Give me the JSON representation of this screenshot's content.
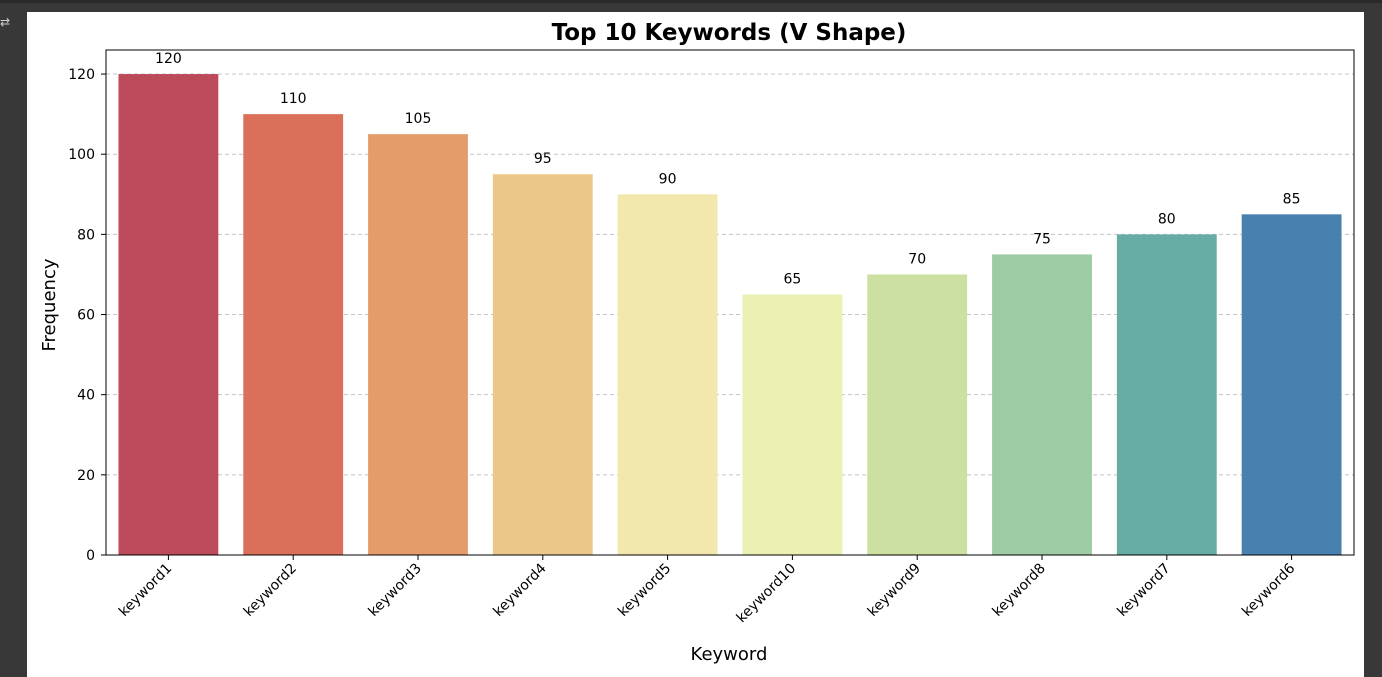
{
  "chart_data": {
    "type": "bar",
    "title": "Top 10 Keywords (V Shape)",
    "xlabel": "Keyword",
    "ylabel": "Frequency",
    "categories": [
      "keyword1",
      "keyword2",
      "keyword3",
      "keyword4",
      "keyword5",
      "keyword10",
      "keyword9",
      "keyword8",
      "keyword7",
      "keyword6"
    ],
    "values": [
      120,
      110,
      105,
      95,
      90,
      65,
      70,
      75,
      80,
      85
    ],
    "colors": [
      "#bd4a5a",
      "#da7059",
      "#e59c6b",
      "#ebc889",
      "#f2e8ad",
      "#eaf1b2",
      "#cce0a1",
      "#9ccba4",
      "#66aba4",
      "#4880af"
    ],
    "ylim": [
      0,
      126
    ],
    "yticks": [
      0,
      20,
      40,
      60,
      80,
      100,
      120
    ],
    "grid": "y, dashed",
    "legend": "none"
  }
}
